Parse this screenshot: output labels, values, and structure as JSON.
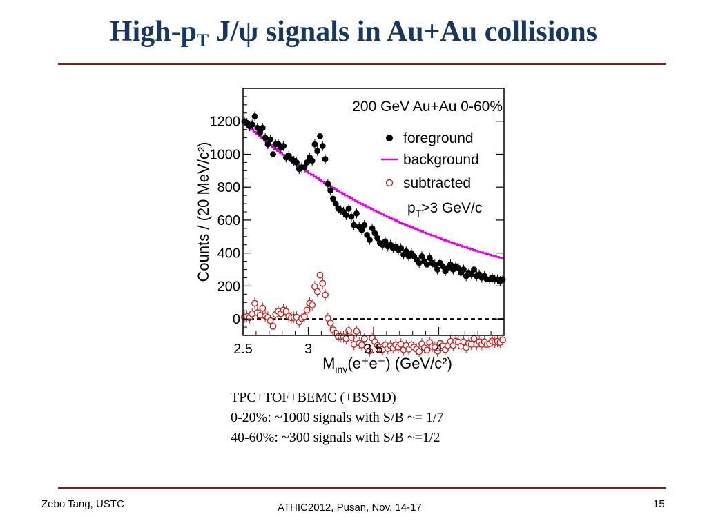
{
  "slide": {
    "title_main": "High-p",
    "title_sub": "T",
    "title_rest": " J/ψ signals in Au+Au collisions",
    "caption": [
      "TPC+TOF+BEMC (+BSMD)",
      "0-20%: ~1000 signals with S/B ~= 1/7",
      "40-60%: ~300 signals  with S/B ~=1/2"
    ],
    "footer_left": "Zebo Tang, USTC",
    "footer_center": "ATHIC2012, Pusan, Nov. 14-17",
    "page_number": "15"
  },
  "colors": {
    "title": "#17375e",
    "rule": "#8b1a1a",
    "foreground": "#000000",
    "background": "#e600e6",
    "subtracted": "#cc2222"
  },
  "chart_data": {
    "type": "scatter",
    "title": "200 GeV Au+Au 0-60%",
    "annotation_main": "p",
    "annotation_sub": "T",
    "annotation_rest": ">3 GeV/c",
    "xlabel_main": "M",
    "xlabel_sub": "inv",
    "xlabel_rest": "(e⁺e⁻) (GeV/c²)",
    "ylabel": "Counts / (20 MeV/c²)",
    "xlim": [
      2.5,
      4.5
    ],
    "ylim": [
      -100,
      1400
    ],
    "xticks": [
      "2.5",
      "3",
      "3.5",
      "4"
    ],
    "xtick_values": [
      2.5,
      3.0,
      3.5,
      4.0
    ],
    "yticks": [
      "0",
      "200",
      "400",
      "600",
      "800",
      "1000",
      "1200"
    ],
    "ytick_values": [
      0,
      200,
      400,
      600,
      800,
      1000,
      1200
    ],
    "legend": [
      "foreground",
      "background",
      "subtracted"
    ],
    "legend_position": "top-right",
    "x": [
      2.51,
      2.53,
      2.55,
      2.57,
      2.59,
      2.61,
      2.63,
      2.65,
      2.67,
      2.69,
      2.71,
      2.73,
      2.75,
      2.77,
      2.79,
      2.81,
      2.83,
      2.85,
      2.87,
      2.89,
      2.91,
      2.93,
      2.95,
      2.97,
      2.99,
      3.01,
      3.03,
      3.05,
      3.07,
      3.09,
      3.11,
      3.13,
      3.15,
      3.17,
      3.19,
      3.21,
      3.23,
      3.25,
      3.27,
      3.29,
      3.31,
      3.33,
      3.35,
      3.37,
      3.39,
      3.41,
      3.43,
      3.45,
      3.47,
      3.49,
      3.51,
      3.53,
      3.55,
      3.57,
      3.59,
      3.61,
      3.63,
      3.65,
      3.67,
      3.69,
      3.71,
      3.73,
      3.75,
      3.77,
      3.79,
      3.81,
      3.83,
      3.85,
      3.87,
      3.89,
      3.91,
      3.93,
      3.95,
      3.97,
      3.99,
      4.01,
      4.03,
      4.05,
      4.07,
      4.09,
      4.11,
      4.13,
      4.15,
      4.17,
      4.19,
      4.21,
      4.23,
      4.25,
      4.27,
      4.29,
      4.31,
      4.33,
      4.35,
      4.37,
      4.39,
      4.41,
      4.43,
      4.45,
      4.47,
      4.49
    ],
    "series": [
      {
        "name": "foreground",
        "values": [
          1200,
          1190,
          1170,
          1180,
          1230,
          1160,
          1130,
          1160,
          1100,
          1060,
          1090,
          1000,
          1060,
          1060,
          1040,
          1050,
          980,
          990,
          970,
          960,
          950,
          910,
          920,
          920,
          950,
          980,
          960,
          1060,
          1020,
          1110,
          1050,
          970,
          820,
          780,
          730,
          700,
          670,
          660,
          650,
          630,
          670,
          620,
          570,
          640,
          560,
          540,
          570,
          510,
          480,
          550,
          520,
          490,
          460,
          450,
          470,
          440,
          450,
          430,
          440,
          420,
          430,
          390,
          410,
          380,
          400,
          380,
          360,
          340,
          380,
          350,
          330,
          370,
          340,
          330,
          300,
          340,
          320,
          290,
          310,
          330,
          300,
          320,
          310,
          280,
          300,
          260,
          280,
          270,
          300,
          260,
          270,
          250,
          260,
          240,
          240,
          250,
          240,
          240,
          230,
          240
        ]
      },
      {
        "name": "background",
        "values": [
          1190,
          1176,
          1162,
          1149,
          1135,
          1122,
          1108,
          1095,
          1082,
          1070,
          1057,
          1045,
          1032,
          1020,
          1008,
          996,
          985,
          973,
          962,
          950,
          939,
          928,
          917,
          906,
          896,
          885,
          875,
          864,
          854,
          844,
          834,
          824,
          815,
          805,
          796,
          786,
          777,
          768,
          759,
          750,
          741,
          732,
          724,
          715,
          707,
          698,
          690,
          682,
          674,
          666,
          658,
          650,
          643,
          635,
          628,
          620,
          613,
          606,
          598,
          591,
          584,
          577,
          571,
          564,
          557,
          551,
          544,
          538,
          531,
          525,
          519,
          513,
          507,
          501,
          495,
          489,
          483,
          477,
          472,
          466,
          461,
          455,
          450,
          445,
          439,
          434,
          429,
          424,
          419,
          414,
          409,
          404,
          399,
          395,
          390,
          385,
          381,
          376,
          372,
          367
        ]
      },
      {
        "name": "subtracted",
        "values": [
          10,
          14,
          8,
          31,
          95,
          38,
          22,
          65,
          18,
          10,
          -10,
          -45,
          28,
          46,
          32,
          54,
          45,
          17,
          8,
          10,
          11,
          -18,
          3,
          14,
          54,
          95,
          85,
          196,
          166,
          266,
          216,
          146,
          5,
          -25,
          -66,
          -86,
          -107,
          -108,
          -109,
          -120,
          -71,
          -112,
          -154,
          -75,
          -147,
          -158,
          -120,
          -172,
          -194,
          -116,
          -138,
          -160,
          -183,
          -185,
          -158,
          -180,
          -163,
          -176,
          -158,
          -171,
          -154,
          -187,
          -161,
          -184,
          -157,
          -171,
          -184,
          -198,
          -151,
          -175,
          -189,
          -143,
          -167,
          -171,
          -195,
          -149,
          -163,
          -187,
          -162,
          -136,
          -161,
          -135,
          -140,
          -165,
          -139,
          -174,
          -149,
          -154,
          -119,
          -154,
          -139,
          -154,
          -139,
          -155,
          -150,
          -135,
          -141,
          -136,
          -142,
          -127
        ]
      }
    ]
  }
}
